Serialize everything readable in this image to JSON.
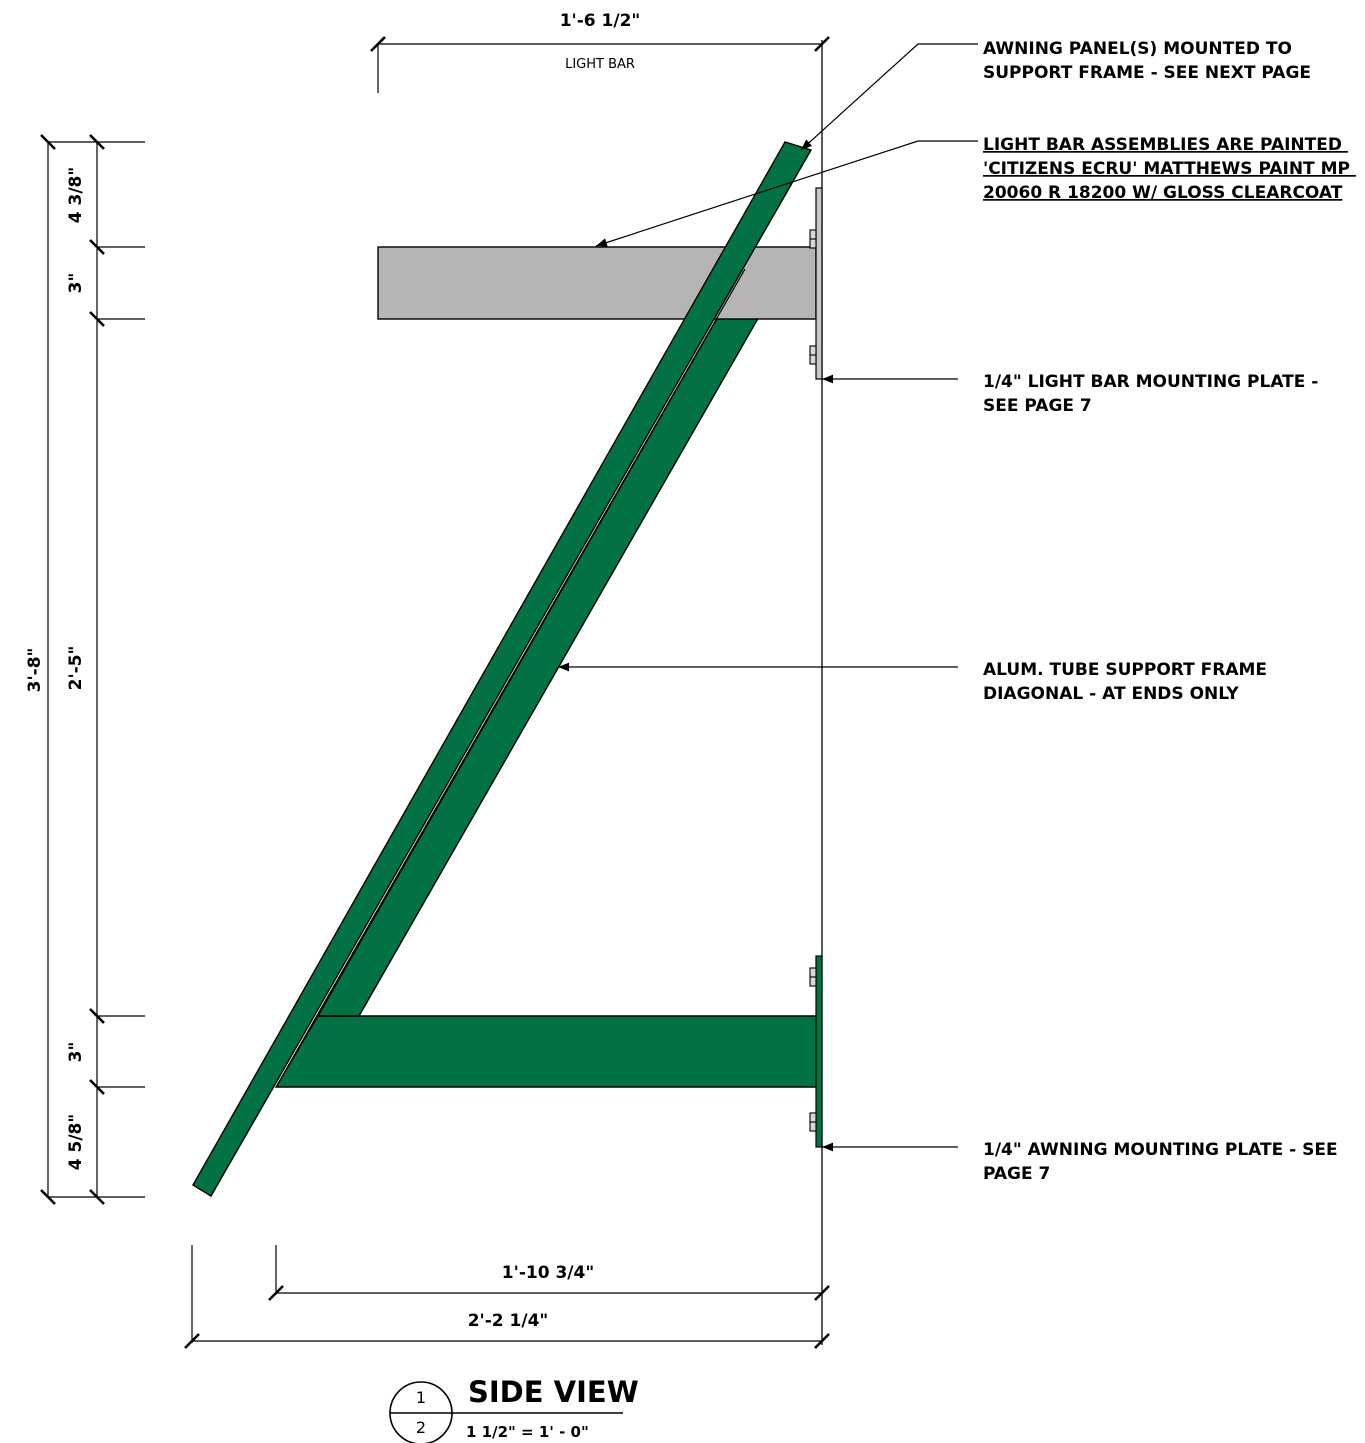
{
  "dimensions": {
    "top_width": "1'-6 1/2\"",
    "top_label": "LIGHT BAR",
    "overall_height": "3'-8\"",
    "seg_top": "4 3/8\"",
    "seg_lightbar": "3\"",
    "seg_middle": "2'-5\"",
    "seg_arm": "3\"",
    "seg_bottom": "4 5/8\"",
    "bottom_inner": "1'-10 3/4\"",
    "bottom_overall": "2'-2 1/4\""
  },
  "notes": [
    {
      "lines": [
        "AWNING PANEL(S) MOUNTED TO",
        "SUPPORT FRAME - SEE NEXT PAGE"
      ]
    },
    {
      "lines": [
        "LIGHT BAR ASSEMBLIES ARE PAINTED",
        "'CITIZENS ECRU' MATTHEWS PAINT MP",
        "20060 R 18200 W/ GLOSS CLEARCOAT"
      ]
    },
    {
      "lines": [
        "1/4\" LIGHT BAR MOUNTING PLATE -",
        "SEE PAGE 7"
      ]
    },
    {
      "lines": [
        "ALUM. TUBE SUPPORT FRAME",
        "DIAGONAL - AT ENDS ONLY"
      ]
    },
    {
      "lines": [
        "1/4\" AWNING MOUNTING PLATE - SEE",
        "PAGE 7"
      ]
    }
  ],
  "title_block": {
    "detail_number": "1",
    "sheet_number": "2",
    "title": "SIDE VIEW",
    "scale": "1 1/2\" = 1' - 0\""
  },
  "colors": {
    "frame_green": "#027143",
    "light_bar_gray": "#b5b5b5",
    "plate_gray": "#c8c8c8",
    "line": "#000000"
  }
}
